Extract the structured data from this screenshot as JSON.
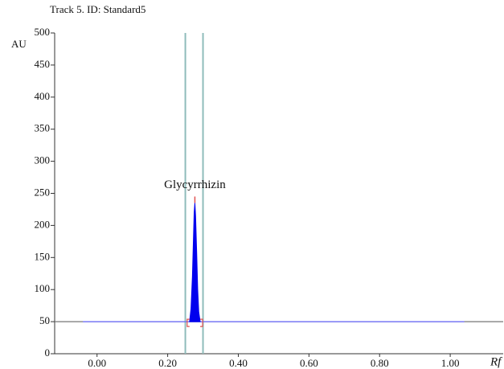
{
  "chart_data": {
    "type": "densitogram",
    "title": "Track 5. ID: Standard5",
    "y_label": "AU",
    "x_label": "Rf",
    "annotation": "Glycyrrhizin",
    "xlim": [
      -0.12,
      1.15
    ],
    "ylim": [
      0,
      500
    ],
    "xticks": [
      {
        "value": 0,
        "label": "0.00"
      },
      {
        "value": 0.2,
        "label": "0.20"
      },
      {
        "value": 0.4,
        "label": "0.40"
      },
      {
        "value": 0.6,
        "label": "0.60"
      },
      {
        "value": 0.8,
        "label": "0.80"
      },
      {
        "value": 1.0,
        "label": "1.00"
      }
    ],
    "yticks": [
      0,
      50,
      100,
      150,
      200,
      250,
      300,
      350,
      400,
      450,
      500
    ],
    "markers": [
      0.25,
      0.3
    ],
    "marker_color": "#8fbcbb",
    "series": [
      {
        "name": "track",
        "color": "#777777",
        "x": [
          -0.12,
          1.15
        ],
        "values": [
          50,
          50
        ]
      },
      {
        "name": "baseline",
        "color": "#6b6bff",
        "x": [
          -0.04,
          1.04
        ],
        "values": [
          50,
          50
        ]
      },
      {
        "name": "peak",
        "color": "#0000ee",
        "x": [
          0.262,
          0.266,
          0.27,
          0.273,
          0.275,
          0.277,
          0.279,
          0.282,
          0.285,
          0.288,
          0.292
        ],
        "values": [
          50,
          70,
          120,
          180,
          220,
          235,
          215,
          160,
          100,
          65,
          50
        ]
      }
    ]
  }
}
